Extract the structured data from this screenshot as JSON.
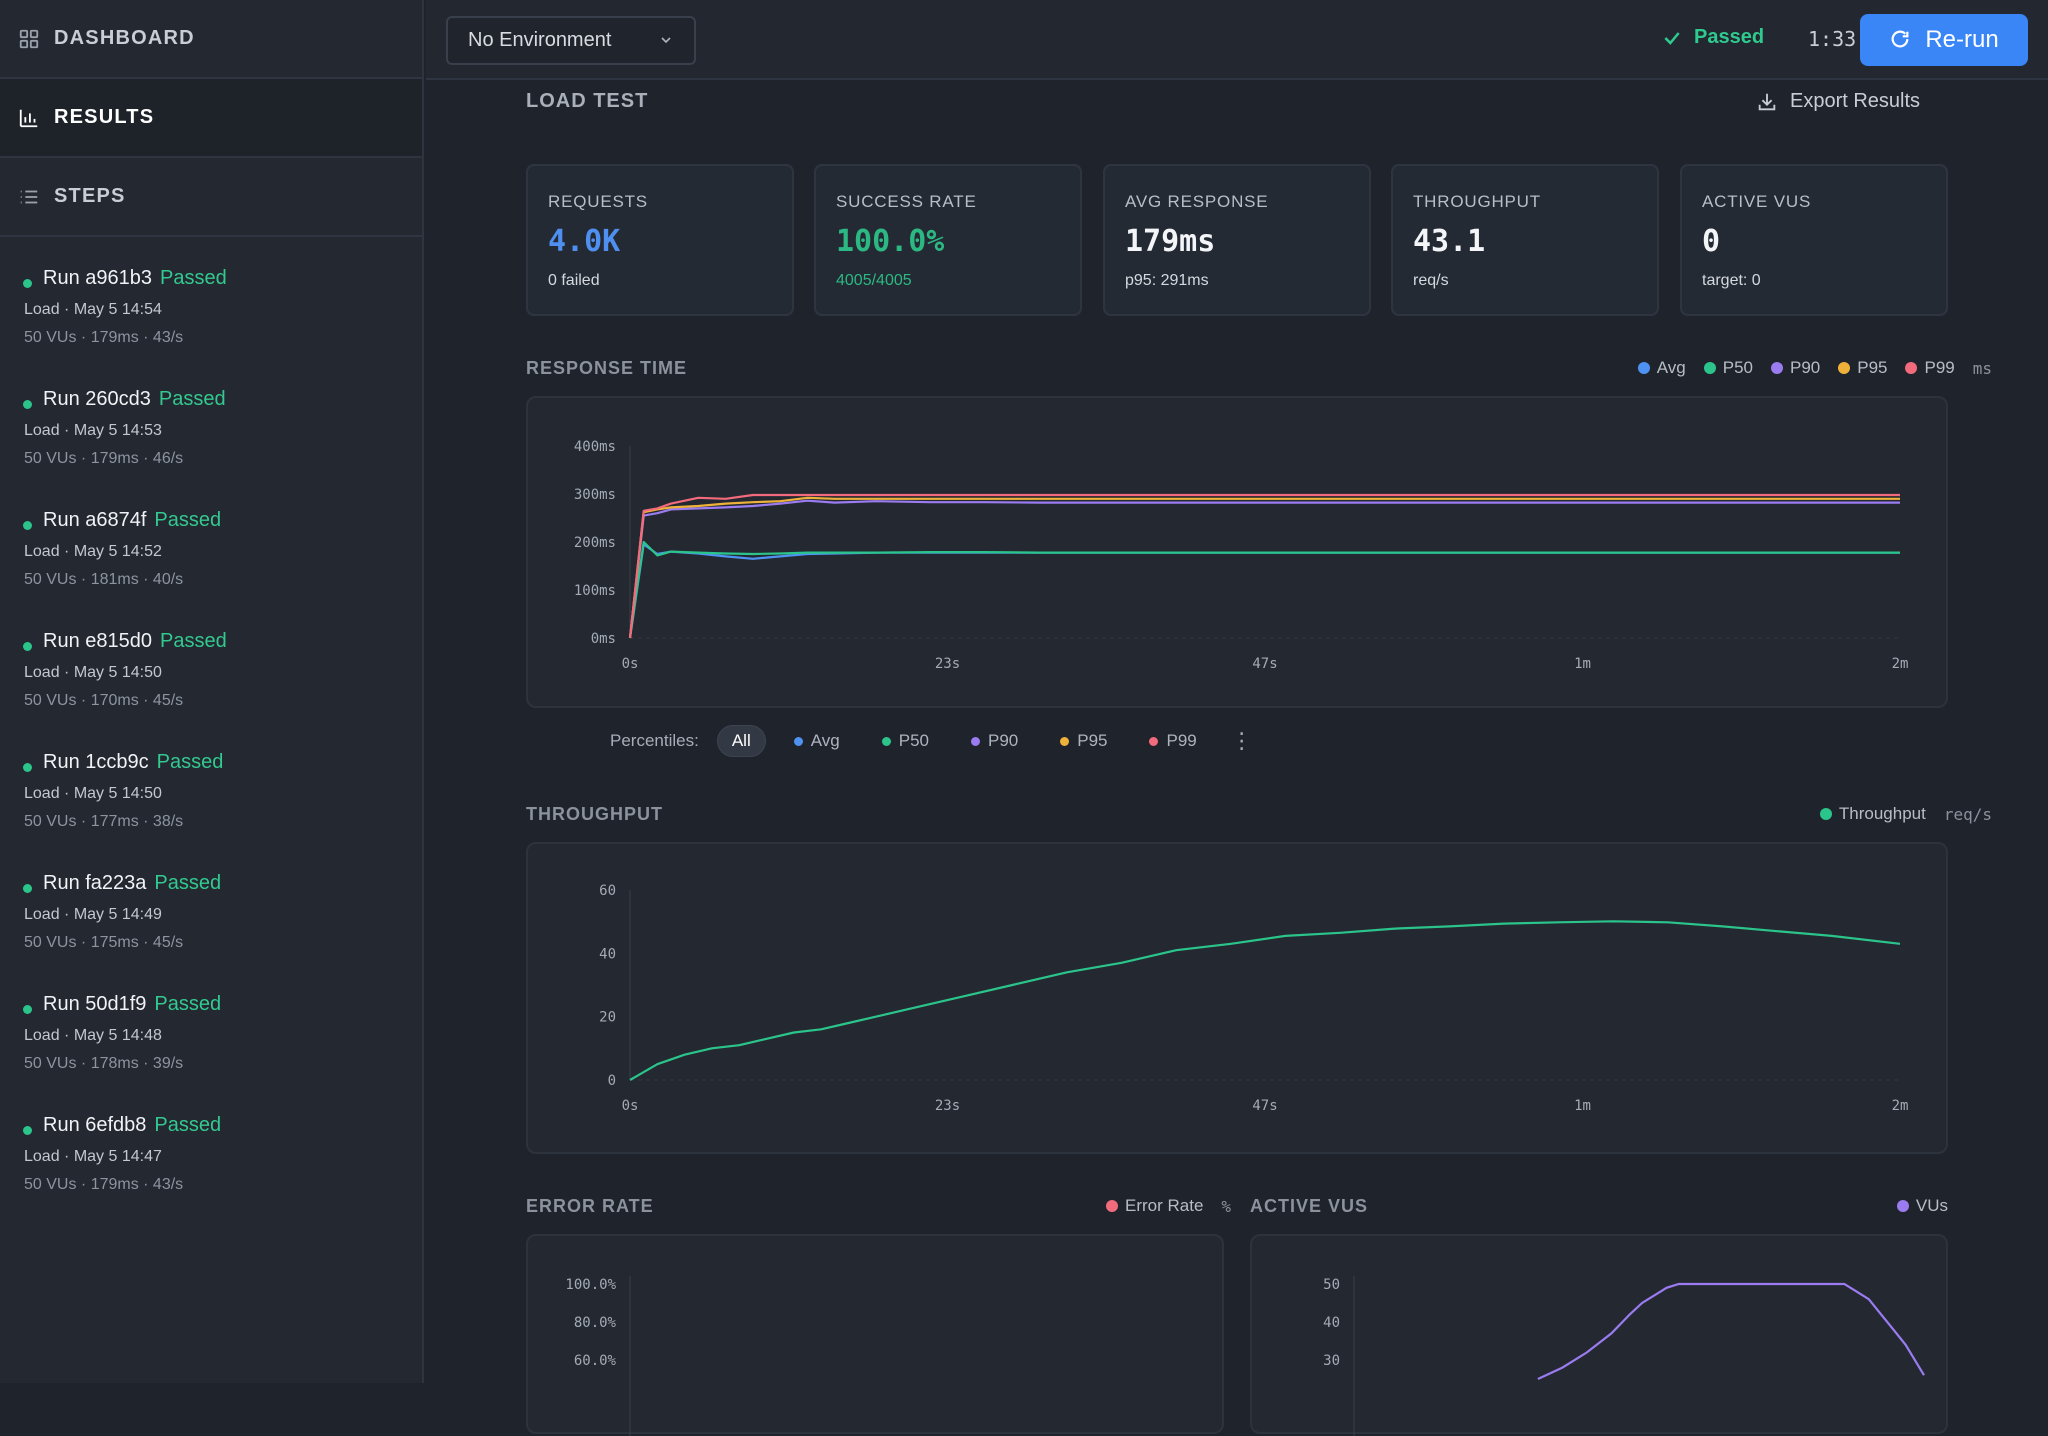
{
  "nav": {
    "dashboard": "DASHBOARD",
    "results": "RESULTS",
    "steps": "STEPS"
  },
  "runs": [
    {
      "title": "Run a961b3",
      "status": "Passed",
      "line2": "Load · May 5 14:54",
      "line3": "50 VUs · 179ms · 43/s"
    },
    {
      "title": "Run 260cd3",
      "status": "Passed",
      "line2": "Load · May 5 14:53",
      "line3": "50 VUs · 179ms · 46/s"
    },
    {
      "title": "Run a6874f",
      "status": "Passed",
      "line2": "Load · May 5 14:52",
      "line3": "50 VUs · 181ms · 40/s"
    },
    {
      "title": "Run e815d0",
      "status": "Passed",
      "line2": "Load · May 5 14:50",
      "line3": "50 VUs · 170ms · 45/s"
    },
    {
      "title": "Run 1ccb9c",
      "status": "Passed",
      "line2": "Load · May 5 14:50",
      "line3": "50 VUs · 177ms · 38/s"
    },
    {
      "title": "Run fa223a",
      "status": "Passed",
      "line2": "Load · May 5 14:49",
      "line3": "50 VUs · 175ms · 45/s"
    },
    {
      "title": "Run 50d1f9",
      "status": "Passed",
      "line2": "Load · May 5 14:48",
      "line3": "50 VUs · 178ms · 39/s"
    },
    {
      "title": "Run 6efdb8",
      "status": "Passed",
      "line2": "Load · May 5 14:47",
      "line3": "50 VUs · 179ms · 43/s"
    }
  ],
  "topbar": {
    "environment": "No Environment",
    "status": "Passed",
    "duration": "1:33",
    "rerun_label": "Re-run"
  },
  "main": {
    "title": "LOAD TEST",
    "export_label": "Export Results"
  },
  "cards": [
    {
      "label": "REQUESTS",
      "value": "4.0K",
      "sub": "0 failed",
      "value_color": "#4e8ff0",
      "sub_color": "#d5d9df"
    },
    {
      "label": "SUCCESS RATE",
      "value": "100.0%",
      "sub": "4005/4005",
      "value_color": "#2bb883",
      "sub_color": "#2bb883"
    },
    {
      "label": "AVG RESPONSE",
      "value": "179ms",
      "sub": "p95: 291ms",
      "value_color": "#f3f5f8",
      "sub_color": "#d5d9df"
    },
    {
      "label": "THROUGHPUT",
      "value": "43.1",
      "sub": "req/s",
      "value_color": "#f3f5f8",
      "sub_color": "#d5d9df"
    },
    {
      "label": "ACTIVE VUS",
      "value": "0",
      "sub": "target: 0",
      "value_color": "#f3f5f8",
      "sub_color": "#d5d9df"
    }
  ],
  "colors": {
    "avg": "#4f93f2",
    "p50": "#2bc48a",
    "p90": "#9a7cf0",
    "p95": "#eeb23a",
    "p99": "#f26b7c",
    "throughput": "#2bc48a",
    "error": "#f26b7c",
    "vus": "#9a7cf0"
  },
  "response_section": {
    "title": "RESPONSE TIME",
    "unit": "ms",
    "percentiles_label": "Percentiles:",
    "chips": [
      "All",
      "Avg",
      "P50",
      "P90",
      "P95",
      "P99"
    ]
  },
  "throughput_section": {
    "title": "THROUGHPUT",
    "unit": "req/s"
  },
  "error_section": {
    "title": "ERROR RATE",
    "unit": "%"
  },
  "vus_section": {
    "title": "ACTIVE VUS"
  },
  "chart_data": [
    {
      "type": "line",
      "title": "RESPONSE TIME",
      "x_ticks": [
        "0s",
        "23s",
        "47s",
        "1m",
        "2m"
      ],
      "y_ticks": [
        "0ms",
        "100ms",
        "200ms",
        "300ms",
        "400ms"
      ],
      "ylim": [
        0,
        400
      ],
      "xlim": [
        0,
        93
      ],
      "x": [
        0,
        1,
        2,
        3,
        5,
        7,
        9,
        11,
        13,
        15,
        18,
        22,
        26,
        30,
        40,
        50,
        60,
        70,
        80,
        93
      ],
      "series": [
        {
          "name": "Avg",
          "values": [
            0,
            195,
            175,
            180,
            176,
            170,
            165,
            170,
            175,
            176,
            178,
            178,
            178,
            178,
            178,
            178,
            178,
            178,
            178,
            178
          ]
        },
        {
          "name": "P50",
          "values": [
            0,
            200,
            172,
            180,
            178,
            176,
            175,
            176,
            178,
            178,
            178,
            179,
            179,
            178,
            178,
            178,
            178,
            178,
            178,
            178
          ]
        },
        {
          "name": "P90",
          "values": [
            0,
            255,
            260,
            268,
            270,
            272,
            275,
            280,
            286,
            282,
            285,
            283,
            283,
            282,
            282,
            282,
            282,
            282,
            282,
            282
          ]
        },
        {
          "name": "P95",
          "values": [
            0,
            262,
            268,
            272,
            275,
            280,
            283,
            285,
            292,
            290,
            290,
            290,
            290,
            290,
            290,
            290,
            290,
            290,
            290,
            290
          ]
        },
        {
          "name": "P99",
          "values": [
            0,
            265,
            270,
            280,
            292,
            290,
            298,
            298,
            298,
            298,
            298,
            298,
            298,
            298,
            298,
            298,
            298,
            298,
            298,
            298
          ]
        }
      ]
    },
    {
      "type": "line",
      "title": "THROUGHPUT",
      "x_ticks": [
        "0s",
        "23s",
        "47s",
        "1m",
        "2m"
      ],
      "y_ticks": [
        "0",
        "20",
        "40",
        "60"
      ],
      "ylim": [
        0,
        60
      ],
      "xlim": [
        0,
        93
      ],
      "x": [
        0,
        2,
        4,
        6,
        8,
        10,
        12,
        14,
        16,
        18,
        20,
        24,
        28,
        32,
        36,
        40,
        44,
        48,
        52,
        56,
        60,
        64,
        68,
        72,
        76,
        80,
        84,
        88,
        93
      ],
      "series": [
        {
          "name": "Throughput",
          "values": [
            0,
            5,
            8,
            10,
            11,
            13,
            15,
            16,
            18,
            20,
            22,
            26,
            30,
            34,
            37,
            41,
            43,
            45.5,
            46.5,
            47.8,
            48.5,
            49.4,
            49.8,
            50.1,
            49.8,
            48.5,
            47,
            45.5,
            43
          ]
        }
      ]
    },
    {
      "type": "line",
      "title": "ERROR RATE",
      "y_ticks": [
        "60.0%",
        "80.0%",
        "100.0%"
      ],
      "series": [
        {
          "name": "Error Rate",
          "values": []
        }
      ]
    },
    {
      "type": "line",
      "title": "ACTIVE VUS",
      "y_ticks": [
        "30",
        "40",
        "50"
      ],
      "xlim": [
        0,
        93
      ],
      "x": [
        30,
        34,
        38,
        42,
        45,
        47,
        49,
        51,
        53,
        55,
        60,
        70,
        75,
        80,
        82,
        84,
        86,
        88,
        90,
        93
      ],
      "series": [
        {
          "name": "VUs",
          "values": [
            25,
            28,
            32,
            37,
            42,
            45,
            47,
            49,
            50,
            50,
            50,
            50,
            50,
            50,
            48,
            46,
            42,
            38,
            34,
            26
          ]
        }
      ]
    }
  ]
}
